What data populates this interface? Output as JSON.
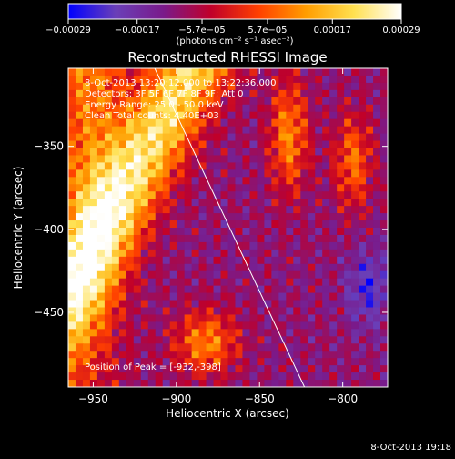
{
  "chart_data": {
    "type": "heatmap",
    "title": "Reconstructed RHESSI Image",
    "xlabel": "Heliocentric X (arcsec)",
    "ylabel": "Heliocentric Y (arcsec)",
    "xlim": [
      -965,
      -773
    ],
    "ylim": [
      -495,
      -303
    ],
    "x_ticks": [
      -950,
      -900,
      -850,
      -800
    ],
    "x_tick_labels": [
      "−950",
      "−900",
      "−850",
      "−800"
    ],
    "y_ticks": [
      -350,
      -400,
      -450
    ],
    "y_tick_labels": [
      "−350",
      "−400",
      "−450"
    ],
    "colorbar": {
      "ticks": [
        -0.00029,
        -0.00017,
        -5.7e-05,
        5.7e-05,
        0.00017,
        0.00029
      ],
      "tick_labels": [
        "−0.00029",
        "−0.00017",
        "−5.7e−05",
        "5.7e−05",
        "0.00017",
        "0.00029"
      ],
      "unit_label": "(photons cm⁻² s⁻¹ asec⁻²)",
      "colors": [
        "#0000ff",
        "#6a3fb8",
        "#7a1a8a",
        "#c0002a",
        "#ff4000",
        "#ff9d00",
        "#ffe050",
        "#ffffff"
      ]
    },
    "info_lines": [
      "8-Oct-2013 13:20:12.000 to 13:22:36.000",
      "Detectors: 3F 5F 6F 7F 8F 9F; Att 0",
      "Energy Range: 25.0 - 50.0 keV",
      "Clean    Total counts: 4.40E+03"
    ],
    "peak_label": "Position of Peak = [-932,-398]",
    "peak": [
      -932,
      -398
    ],
    "limb_line": [
      [
        -913,
        -303
      ],
      [
        -823,
        -495
      ]
    ],
    "grid": false,
    "footer": "8-Oct-2013 19:18"
  }
}
